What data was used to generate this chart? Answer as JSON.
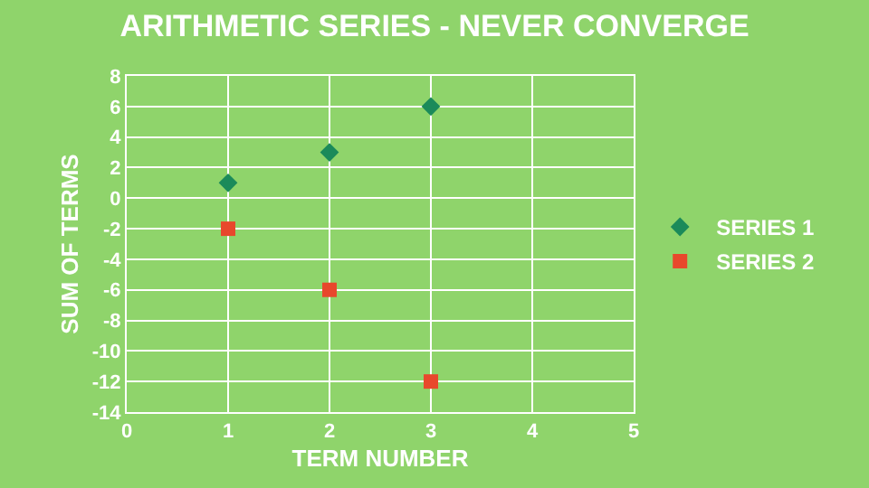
{
  "chart_data": {
    "type": "scatter",
    "title": "ARITHMETIC SERIES - NEVER CONVERGE",
    "xlabel": "TERM NUMBER",
    "ylabel": "SUM OF TERMS",
    "xlim": [
      0,
      5
    ],
    "xticks": [
      0,
      1,
      2,
      3,
      4,
      5
    ],
    "ylim": [
      -14,
      8
    ],
    "yticks": [
      -14,
      -12,
      -10,
      -8,
      -6,
      -4,
      -2,
      0,
      2,
      4,
      6,
      8
    ],
    "grid": true,
    "legend": "right",
    "series": [
      {
        "name": "SERIES 1",
        "color": "#1b8a5a",
        "marker": "diamond",
        "x": [
          1,
          2,
          3
        ],
        "values": [
          1,
          3,
          6
        ]
      },
      {
        "name": "SERIES 2",
        "color": "#e8482c",
        "marker": "square",
        "x": [
          1,
          2,
          3
        ],
        "values": [
          -2,
          -6,
          -12
        ]
      }
    ]
  }
}
